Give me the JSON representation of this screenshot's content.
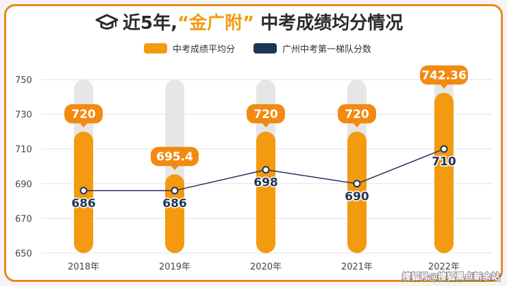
{
  "title": {
    "prefix": "近5年,",
    "highlight": "“金广附”",
    "suffix": " 中考成绩均分情况"
  },
  "watermark": "搜狐号@搜狐黑点新余站",
  "colors": {
    "bar": "#f49a10",
    "bar_track": "#e6e6e6",
    "line": "#1f3557",
    "bubble": "#f28a12",
    "accent": "#e58a1c"
  },
  "icons": {
    "title_icon": "graduation-cap-icon"
  },
  "chart_data": {
    "type": "bar",
    "categories": [
      "2018年",
      "2019年",
      "2020年",
      "2021年",
      "2022年"
    ],
    "ylim": [
      650,
      750
    ],
    "yticks": [
      "750",
      "730",
      "710",
      "690",
      "670",
      "650"
    ],
    "grid": true,
    "legend_position": "top",
    "series": [
      {
        "name": "中考成绩平均分",
        "type": "bar",
        "values": [
          720,
          695.4,
          720,
          720,
          742.36
        ],
        "labels": [
          "720",
          "695.4",
          "720",
          "720",
          "742.36"
        ]
      },
      {
        "name": "广州中考第一梯队分数",
        "type": "line",
        "values": [
          686,
          686,
          698,
          690,
          710
        ],
        "labels": [
          "686",
          "686",
          "698",
          "690",
          "710"
        ]
      }
    ]
  }
}
